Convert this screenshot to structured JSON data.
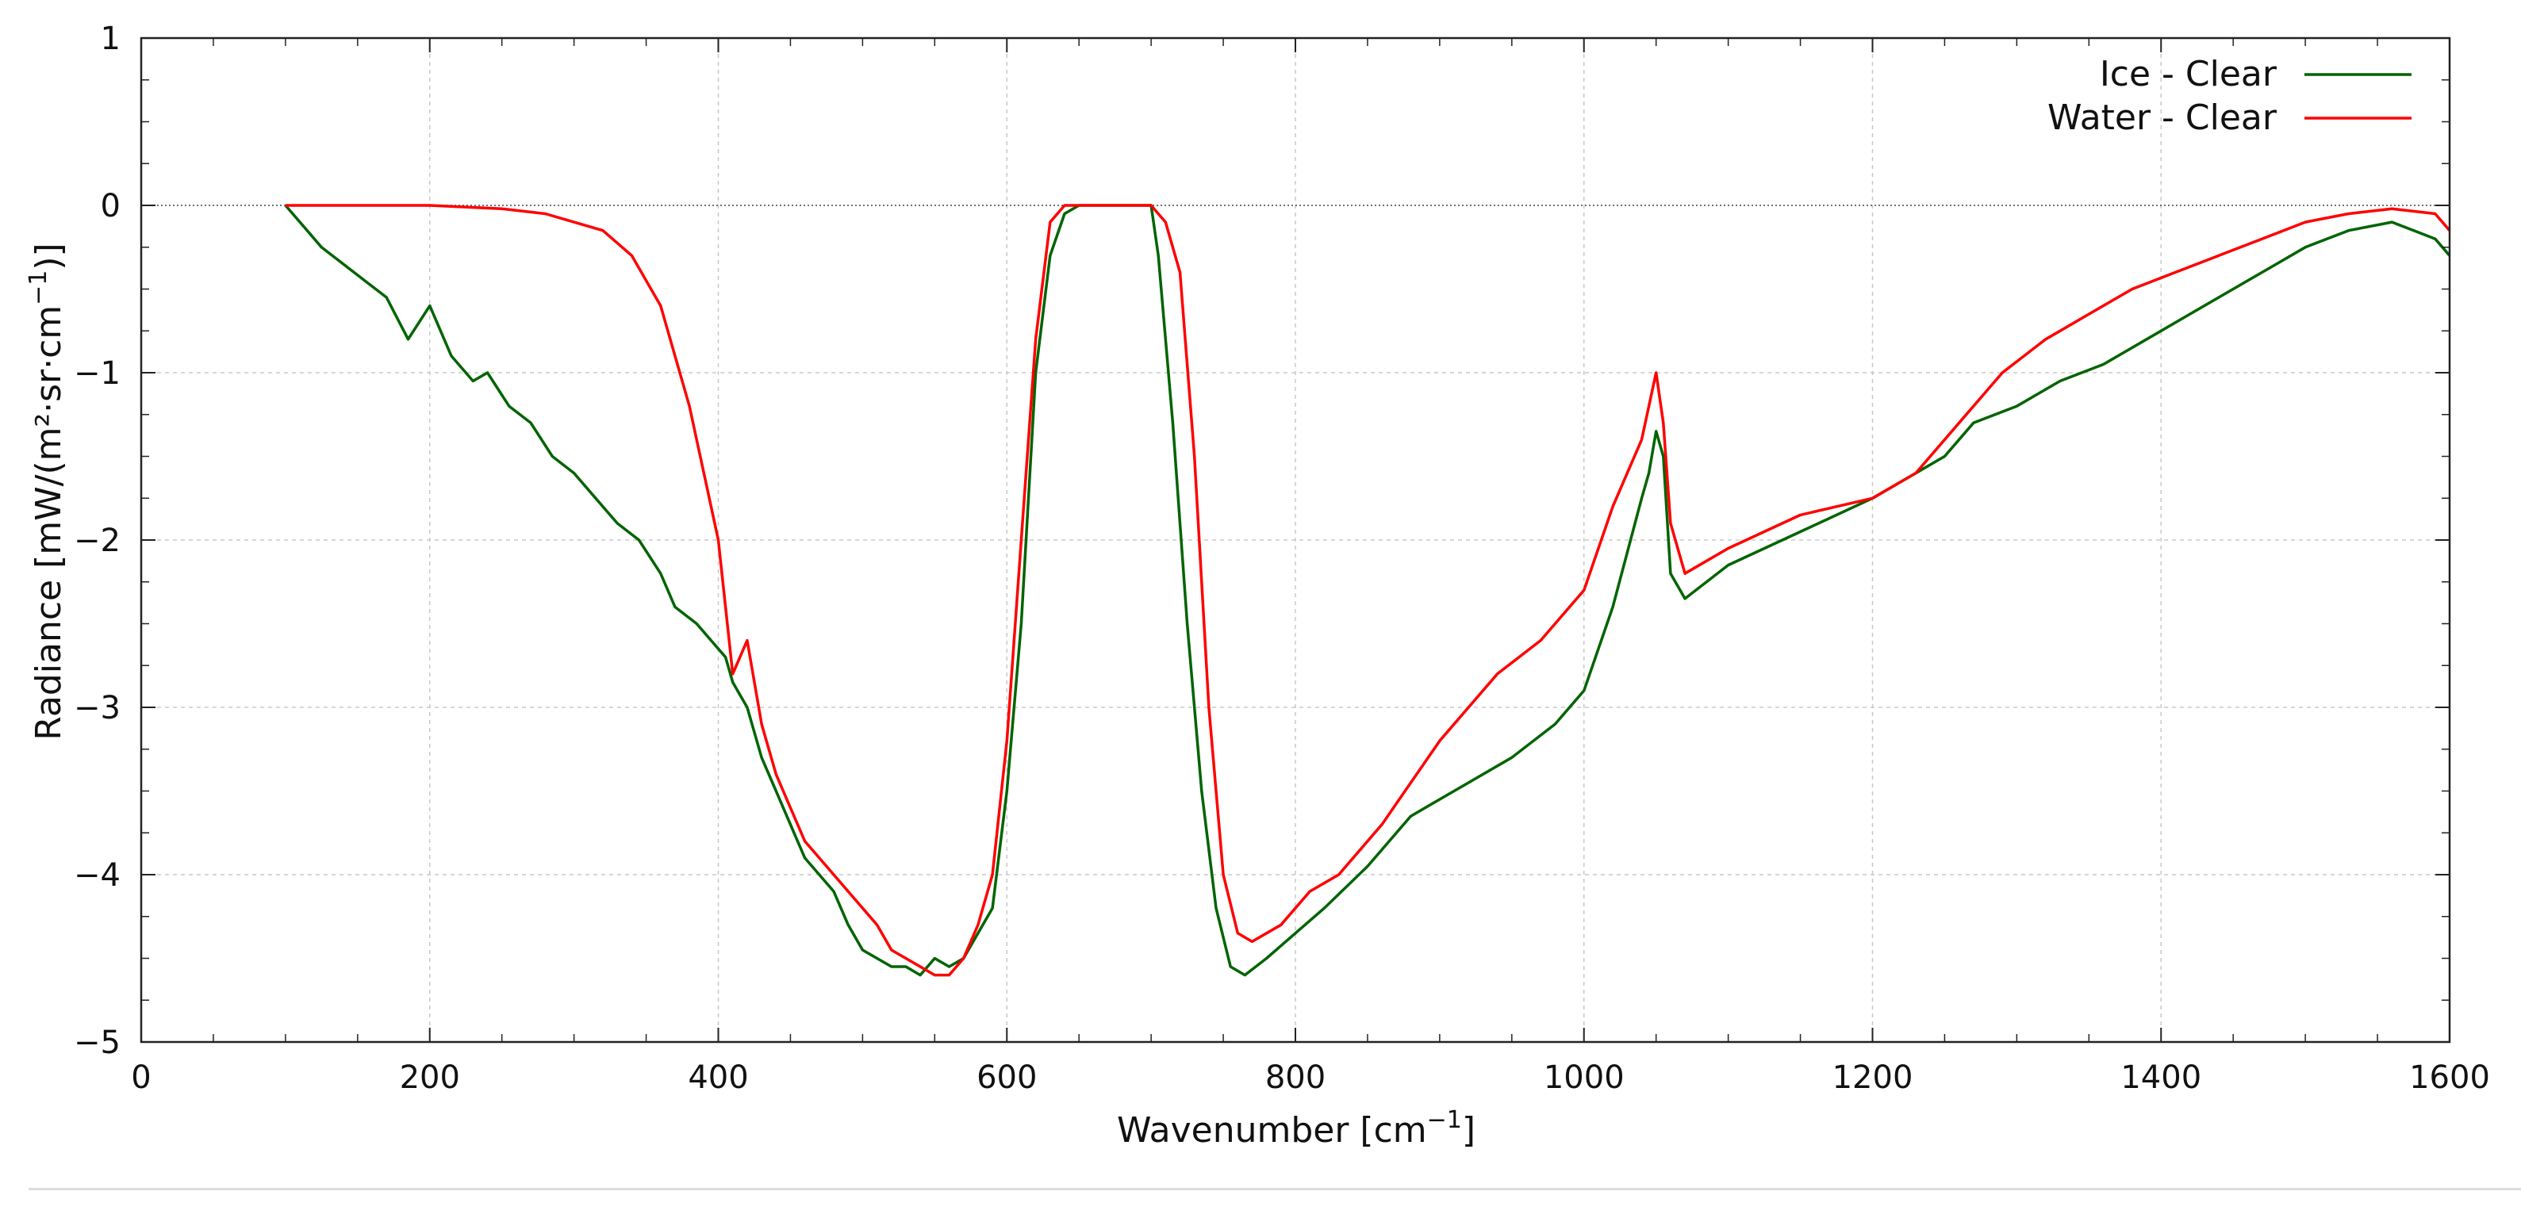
{
  "chart_data": {
    "type": "line",
    "xlabel": "Wavenumber [cm",
    "xlabel_sup": "−1",
    "xlabel_end": "]",
    "ylabel": "Radiance [mW/(m²·sr·cm",
    "ylabel_sup": "−1",
    "ylabel_end": ")]",
    "xlim": [
      0,
      1600
    ],
    "ylim": [
      -5,
      1
    ],
    "xticks": [
      0,
      200,
      400,
      600,
      800,
      1000,
      1200,
      1400,
      1600
    ],
    "xtick_labels": [
      "0",
      "200",
      "400",
      "600",
      "800",
      "1000",
      "1200",
      "1400",
      "1600"
    ],
    "yticks": [
      1,
      0,
      -1,
      -2,
      -3,
      -4,
      -5
    ],
    "ytick_labels": [
      "1",
      "0",
      "−1",
      "−2",
      "−3",
      "−4",
      "−5"
    ],
    "grid": true,
    "zero_line": 0,
    "legend_position": "top-right",
    "series": [
      {
        "name": "Ice - Clear",
        "color": "#006400",
        "x": [
          100,
          110,
          125,
          140,
          155,
          170,
          185,
          200,
          215,
          230,
          240,
          255,
          270,
          285,
          300,
          315,
          330,
          345,
          360,
          370,
          385,
          395,
          405,
          410,
          420,
          430,
          440,
          450,
          460,
          470,
          480,
          490,
          500,
          510,
          520,
          530,
          540,
          550,
          560,
          570,
          580,
          590,
          600,
          610,
          620,
          630,
          640,
          650,
          660,
          680,
          700,
          705,
          715,
          725,
          735,
          745,
          755,
          765,
          780,
          800,
          820,
          850,
          880,
          900,
          920,
          950,
          980,
          1000,
          1020,
          1040,
          1045,
          1050,
          1055,
          1060,
          1070,
          1100,
          1150,
          1200,
          1250,
          1270,
          1300,
          1330,
          1360,
          1390,
          1420,
          1450,
          1480,
          1500,
          1530,
          1560,
          1590,
          1600
        ],
        "y": [
          0,
          -0.1,
          -0.25,
          -0.35,
          -0.45,
          -0.55,
          -0.8,
          -0.6,
          -0.9,
          -1.05,
          -1.0,
          -1.2,
          -1.3,
          -1.5,
          -1.6,
          -1.75,
          -1.9,
          -2.0,
          -2.2,
          -2.4,
          -2.5,
          -2.6,
          -2.7,
          -2.85,
          -3.0,
          -3.3,
          -3.5,
          -3.7,
          -3.9,
          -4.0,
          -4.1,
          -4.3,
          -4.45,
          -4.5,
          -4.55,
          -4.55,
          -4.6,
          -4.5,
          -4.55,
          -4.5,
          -4.35,
          -4.2,
          -3.5,
          -2.5,
          -1.0,
          -0.3,
          -0.05,
          0,
          0,
          0,
          0,
          -0.3,
          -1.3,
          -2.5,
          -3.5,
          -4.2,
          -4.55,
          -4.6,
          -4.5,
          -4.35,
          -4.2,
          -3.95,
          -3.65,
          -3.55,
          -3.45,
          -3.3,
          -3.1,
          -2.9,
          -2.4,
          -1.75,
          -1.6,
          -1.35,
          -1.5,
          -2.2,
          -2.35,
          -2.15,
          -1.95,
          -1.75,
          -1.5,
          -1.3,
          -1.2,
          -1.05,
          -0.95,
          -0.8,
          -0.65,
          -0.5,
          -0.35,
          -0.25,
          -0.15,
          -0.1,
          -0.2,
          -0.3
        ]
      },
      {
        "name": "Water - Clear",
        "color": "#ff0000",
        "x": [
          100,
          150,
          200,
          250,
          280,
          300,
          320,
          340,
          360,
          380,
          400,
          410,
          420,
          430,
          440,
          450,
          460,
          470,
          480,
          490,
          500,
          510,
          520,
          530,
          540,
          550,
          560,
          570,
          580,
          590,
          600,
          610,
          620,
          630,
          640,
          650,
          660,
          680,
          700,
          710,
          720,
          730,
          740,
          750,
          760,
          770,
          790,
          810,
          830,
          860,
          900,
          940,
          970,
          1000,
          1020,
          1040,
          1050,
          1055,
          1060,
          1070,
          1100,
          1150,
          1200,
          1230,
          1260,
          1290,
          1320,
          1350,
          1380,
          1410,
          1440,
          1470,
          1500,
          1530,
          1560,
          1590,
          1600
        ],
        "y": [
          0,
          0,
          0,
          -0.02,
          -0.05,
          -0.1,
          -0.15,
          -0.3,
          -0.6,
          -1.2,
          -2.0,
          -2.8,
          -2.6,
          -3.1,
          -3.4,
          -3.6,
          -3.8,
          -3.9,
          -4.0,
          -4.1,
          -4.2,
          -4.3,
          -4.45,
          -4.5,
          -4.55,
          -4.6,
          -4.6,
          -4.5,
          -4.3,
          -4.0,
          -3.2,
          -2.0,
          -0.8,
          -0.1,
          0,
          0,
          0,
          0,
          0,
          -0.1,
          -0.4,
          -1.5,
          -3.0,
          -4.0,
          -4.35,
          -4.4,
          -4.3,
          -4.1,
          -4.0,
          -3.7,
          -3.2,
          -2.8,
          -2.6,
          -2.3,
          -1.8,
          -1.4,
          -1.0,
          -1.3,
          -1.9,
          -2.2,
          -2.05,
          -1.85,
          -1.75,
          -1.6,
          -1.3,
          -1.0,
          -0.8,
          -0.65,
          -0.5,
          -0.4,
          -0.3,
          -0.2,
          -0.1,
          -0.05,
          -0.02,
          -0.05,
          -0.15
        ]
      }
    ]
  }
}
